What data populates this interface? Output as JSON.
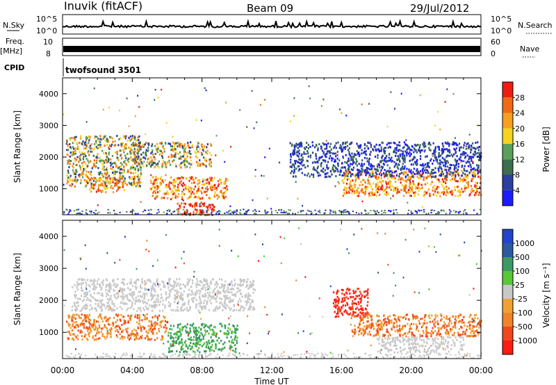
{
  "header": {
    "station": "Inuvik (fitACF)",
    "beam": "Beam 09",
    "date": "29/Jul/2012"
  },
  "strips": {
    "nsky_label": "N.Sky",
    "nsky_ticks": [
      "10^5",
      "10^0"
    ],
    "nsearch_label": "N.Search",
    "nsearch_ticks": [
      "10^5",
      "10^0"
    ],
    "freq_label": "Freq.",
    "freq_unit": "[MHz]",
    "freq_ticks": [
      "10",
      "8"
    ],
    "nave_label": "Nave",
    "nave_ticks": [
      "60",
      "0"
    ],
    "cpid_label": "CPID",
    "cpid_value": "twofsound 3501"
  },
  "colors": {
    "power_scale": [
      "#1c1cff",
      "#2a3fa0",
      "#3d6e4e",
      "#5aa05a",
      "#f5d31e",
      "#f5a020",
      "#f06a14",
      "#ee1d12"
    ],
    "velocity_scale": [
      "#ff1a14",
      "#f0481a",
      "#f08428",
      "#f0a230",
      "#c8c8c8",
      "#58c838",
      "#3c9a64",
      "#2c5aa0",
      "#2244cc"
    ],
    "background": "#ffffff"
  },
  "chart_data": [
    {
      "type": "heatmap",
      "panel": "power",
      "ylabel": "Slant Range [km]",
      "ylim": [
        180,
        4500
      ],
      "yticks": [
        "1000",
        "2000",
        "3000",
        "4000"
      ],
      "xlim": [
        "00:00",
        "24:00"
      ],
      "colorbar_label": "Power [dB]",
      "colorbar_ticks": [
        "4",
        "8",
        "12",
        "16",
        "20",
        "24",
        "28"
      ],
      "scatter_regions": [
        {
          "t_start": 0.2,
          "t_end": 4.5,
          "range_km": [
            1100,
            2700
          ],
          "level": "mixed"
        },
        {
          "t_start": 1.5,
          "t_end": 3.5,
          "range_km": [
            900,
            1400
          ],
          "level": "high"
        },
        {
          "t_start": 4.0,
          "t_end": 8.5,
          "range_km": [
            1700,
            2500
          ],
          "level": "mixed"
        },
        {
          "t_start": 5.0,
          "t_end": 9.5,
          "range_km": [
            700,
            1400
          ],
          "level": "high"
        },
        {
          "t_start": 6.5,
          "t_end": 8.8,
          "range_km": [
            200,
            600
          ],
          "level": "very high"
        },
        {
          "t_start": 16.0,
          "t_end": 24.0,
          "range_km": [
            800,
            1600
          ],
          "level": "high"
        },
        {
          "t_start": 13.0,
          "t_end": 24.0,
          "range_km": [
            1400,
            2500
          ],
          "level": "low"
        }
      ]
    },
    {
      "type": "heatmap",
      "panel": "velocity",
      "ylabel": "Slant Range [km]",
      "ylim": [
        180,
        4500
      ],
      "yticks": [
        "1000",
        "2000",
        "3000",
        "4000"
      ],
      "xlim": [
        "00:00",
        "24:00"
      ],
      "xticks": [
        "00:00",
        "04:00",
        "08:00",
        "12:00",
        "16:00",
        "20:00",
        "00:00"
      ],
      "xlabel": "Time UT",
      "colorbar_label": "Velocity [m s⁻¹]",
      "colorbar_ticks": [
        "1000",
        "500",
        "100",
        "25",
        "-25",
        "-100",
        "-500",
        "-1000"
      ],
      "scatter_regions": [
        {
          "t_start": 0.2,
          "t_end": 6.0,
          "range_km": [
            800,
            1600
          ],
          "level": "-500"
        },
        {
          "t_start": 0.5,
          "t_end": 11.0,
          "range_km": [
            1700,
            2700
          ],
          "level": "ground"
        },
        {
          "t_start": 6.0,
          "t_end": 10.0,
          "range_km": [
            400,
            1300
          ],
          "level": "100"
        },
        {
          "t_start": 15.5,
          "t_end": 17.5,
          "range_km": [
            1500,
            2400
          ],
          "level": "-1000"
        },
        {
          "t_start": 16.5,
          "t_end": 24.0,
          "range_km": [
            900,
            1600
          ],
          "level": "-500"
        },
        {
          "t_start": 18.0,
          "t_end": 23.0,
          "range_km": [
            400,
            900
          ],
          "level": "ground"
        }
      ]
    }
  ]
}
